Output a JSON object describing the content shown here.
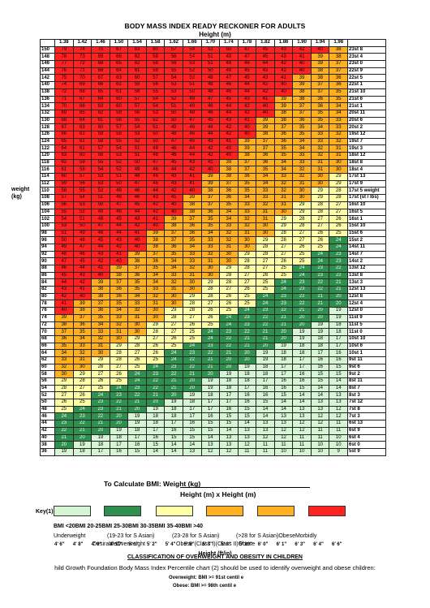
{
  "title": "BODY MASS INDEX READY RECKONER FOR ADULTS",
  "subtitle": "Height (m)",
  "heights_m": [
    "1.38",
    "1.42",
    "1.46",
    "1.50",
    "1.54",
    "1.58",
    "1.62",
    "1.66",
    "1.70",
    "1.74",
    "1.78",
    "1.82",
    "1.86",
    "1.90",
    "1.94",
    "1.98"
  ],
  "weight_label_line1": "weight (kg)",
  "weights": [
    {
      "kg": "150",
      "st": "23st 8"
    },
    {
      "kg": "148",
      "st": "23st 4"
    },
    {
      "kg": "146",
      "st": "23st 0"
    },
    {
      "kg": "144",
      "st": "22st 9"
    },
    {
      "kg": "142",
      "st": "22st 5"
    },
    {
      "kg": "140",
      "st": "22st 1"
    },
    {
      "kg": "138",
      "st": "21st 10"
    },
    {
      "kg": "136",
      "st": "21st 6"
    },
    {
      "kg": "134",
      "st": "21st 1"
    },
    {
      "kg": "132",
      "st": "20st 11"
    },
    {
      "kg": "130",
      "st": "20st 6"
    },
    {
      "kg": "128",
      "st": "20st 2"
    },
    {
      "kg": "126",
      "st": "19st 12"
    },
    {
      "kg": "124",
      "st": "19st 7"
    },
    {
      "kg": "122",
      "st": "19st 3"
    },
    {
      "kg": "120",
      "st": "18st 12"
    },
    {
      "kg": "118",
      "st": "18st 8"
    },
    {
      "kg": "116",
      "st": "18st 4"
    },
    {
      "kg": "114",
      "st": "17st 13"
    },
    {
      "kg": "112",
      "st": "17st 9"
    },
    {
      "kg": "110",
      "st": "17st 5 weight"
    },
    {
      "kg": "108",
      "st": "17st (st / lbs)"
    },
    {
      "kg": "106",
      "st": "16st 10"
    },
    {
      "kg": "104",
      "st": "16st 5"
    },
    {
      "kg": "102",
      "st": "16st 1"
    },
    {
      "kg": "100",
      "st": "15st 10"
    },
    {
      "kg": "98",
      "st": "15st 6"
    },
    {
      "kg": "96",
      "st": "15st 2"
    },
    {
      "kg": "94",
      "st": "14st 11"
    },
    {
      "kg": "92",
      "st": "14st 7"
    },
    {
      "kg": "90",
      "st": "14st 2"
    },
    {
      "kg": "88",
      "st": "13st 12"
    },
    {
      "kg": "86",
      "st": "13st 8"
    },
    {
      "kg": "84",
      "st": "13st 3"
    },
    {
      "kg": "82",
      "st": "12st 13"
    },
    {
      "kg": "80",
      "st": "12st 8"
    },
    {
      "kg": "78",
      "st": "12st 4"
    },
    {
      "kg": "76",
      "st": "12st 0"
    },
    {
      "kg": "74",
      "st": "11st 9"
    },
    {
      "kg": "72",
      "st": "11st 5"
    },
    {
      "kg": "70",
      "st": "11st 0"
    },
    {
      "kg": "68",
      "st": "10st 10"
    },
    {
      "kg": "66",
      "st": "10st 6"
    },
    {
      "kg": "64",
      "st": "10st 1"
    },
    {
      "kg": "62",
      "st": "9st 11"
    },
    {
      "kg": "60",
      "st": "9st 6"
    },
    {
      "kg": "58",
      "st": "9st 2"
    },
    {
      "kg": "56",
      "st": "8st 11"
    },
    {
      "kg": "54",
      "st": "8st 7"
    },
    {
      "kg": "52",
      "st": "8st 3"
    },
    {
      "kg": "50",
      "st": "7st 12"
    },
    {
      "kg": "48",
      "st": "7st 8"
    },
    {
      "kg": "46",
      "st": "7st 3"
    },
    {
      "kg": "44",
      "st": "6st 13"
    },
    {
      "kg": "42",
      "st": "6st 9"
    },
    {
      "kg": "40",
      "st": "6st 4"
    },
    {
      "kg": "38",
      "st": "6st 0"
    },
    {
      "kg": "36",
      "st": "5st 9"
    }
  ],
  "feet_inches": [
    "4' 6\"",
    "4' 8\"",
    "4' 9\"",
    "4' 11\"",
    "5' 1\"",
    "5' 2\"",
    "5' 4\"",
    "5' 5\"",
    "5' 7\"",
    "5' 8\"",
    "5' 10\"",
    "6' 0\"",
    "6' 1\"",
    "6' 3\"",
    "6' 4\"",
    "6' 6\""
  ],
  "height_ft_label": "Height (ft/in)",
  "calc_line1": "To Calculate BMI: Weight (kg)",
  "calc_line2": "Height (m) x Height (m)",
  "key_label": "Key(1):",
  "key_colors": [
    "#d5f5d5",
    "#2f8f4e",
    "#ffffa8",
    "#ffb020",
    "#ff2020"
  ],
  "bmi_ranges": "BMI <20BMI 20-25BMI 25-30BMI 30-35BMI 35-40BMI >40",
  "categories_line1": [
    "Underweight",
    "(19-23 for S Asian)",
    "(23-28 for S Asian)",
    "(>28 for S Asian)ObeseMorbidly"
  ],
  "categories_line2": [
    "DesirableOverweight",
    "Obese (Class I)(Class II)Obese"
  ],
  "classification_title": "CLASSIFICATION OF OVERWEIGHT AND OBESITY IN CHILDREN",
  "child_text": "hild Growth Foundation Body Mass Index Percentile chart (2) should be used to identify overweight and obese children:",
  "overweight_text": "Overweight: BMI >= 91st centil  e",
  "obese_text": "Obese: BMI >= 98th centil  e"
}
